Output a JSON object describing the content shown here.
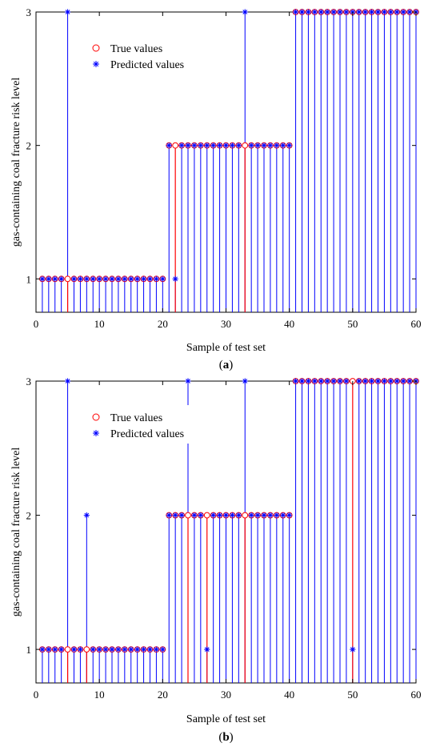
{
  "colors": {
    "true": "#ff0000",
    "pred": "#0000ff",
    "axis": "#000000"
  },
  "chart_data": [
    {
      "type": "scatter",
      "caption": "(a)",
      "xlabel": "Sample of test set",
      "ylabel": "gas-containing coal fracture risk level",
      "xlim": [
        0,
        60
      ],
      "ylim": [
        0.75,
        3.0
      ],
      "xticks": [
        "0",
        "10",
        "20",
        "30",
        "40",
        "50",
        "60"
      ],
      "yticks": [
        "1",
        "2",
        "3"
      ],
      "legend": {
        "position": "top-left",
        "entries": [
          "True values",
          "Predicted values"
        ]
      },
      "x": [
        1,
        2,
        3,
        4,
        5,
        6,
        7,
        8,
        9,
        10,
        11,
        12,
        13,
        14,
        15,
        16,
        17,
        18,
        19,
        20,
        21,
        22,
        23,
        24,
        25,
        26,
        27,
        28,
        29,
        30,
        31,
        32,
        33,
        34,
        35,
        36,
        37,
        38,
        39,
        40,
        41,
        42,
        43,
        44,
        45,
        46,
        47,
        48,
        49,
        50,
        51,
        52,
        53,
        54,
        55,
        56,
        57,
        58,
        59,
        60
      ],
      "series": [
        {
          "name": "True values",
          "marker": "circle",
          "values": [
            1,
            1,
            1,
            1,
            1,
            1,
            1,
            1,
            1,
            1,
            1,
            1,
            1,
            1,
            1,
            1,
            1,
            1,
            1,
            1,
            2,
            2,
            2,
            2,
            2,
            2,
            2,
            2,
            2,
            2,
            2,
            2,
            2,
            2,
            2,
            2,
            2,
            2,
            2,
            2,
            3,
            3,
            3,
            3,
            3,
            3,
            3,
            3,
            3,
            3,
            3,
            3,
            3,
            3,
            3,
            3,
            3,
            3,
            3,
            3
          ]
        },
        {
          "name": "Predicted values",
          "marker": "asterisk",
          "values": [
            1,
            1,
            1,
            1,
            3,
            1,
            1,
            1,
            1,
            1,
            1,
            1,
            1,
            1,
            1,
            1,
            1,
            1,
            1,
            1,
            2,
            1,
            2,
            2,
            2,
            2,
            2,
            2,
            2,
            2,
            2,
            2,
            3,
            2,
            2,
            2,
            2,
            2,
            2,
            2,
            3,
            3,
            3,
            3,
            3,
            3,
            3,
            3,
            3,
            3,
            3,
            3,
            3,
            3,
            3,
            3,
            3,
            3,
            3,
            3
          ]
        }
      ]
    },
    {
      "type": "scatter",
      "caption": "(b)",
      "xlabel": "Sample of test set",
      "ylabel": "gas-containing coal fracture risk level",
      "xlim": [
        0,
        60
      ],
      "ylim": [
        0.75,
        3.0
      ],
      "xticks": [
        "0",
        "10",
        "20",
        "30",
        "40",
        "50",
        "60"
      ],
      "yticks": [
        "1",
        "2",
        "3"
      ],
      "legend": {
        "position": "top-left",
        "entries": [
          "True values",
          "Predicted values"
        ]
      },
      "x": [
        1,
        2,
        3,
        4,
        5,
        6,
        7,
        8,
        9,
        10,
        11,
        12,
        13,
        14,
        15,
        16,
        17,
        18,
        19,
        20,
        21,
        22,
        23,
        24,
        25,
        26,
        27,
        28,
        29,
        30,
        31,
        32,
        33,
        34,
        35,
        36,
        37,
        38,
        39,
        40,
        41,
        42,
        43,
        44,
        45,
        46,
        47,
        48,
        49,
        50,
        51,
        52,
        53,
        54,
        55,
        56,
        57,
        58,
        59,
        60
      ],
      "series": [
        {
          "name": "True values",
          "marker": "circle",
          "values": [
            1,
            1,
            1,
            1,
            1,
            1,
            1,
            1,
            1,
            1,
            1,
            1,
            1,
            1,
            1,
            1,
            1,
            1,
            1,
            1,
            2,
            2,
            2,
            2,
            2,
            2,
            2,
            2,
            2,
            2,
            2,
            2,
            2,
            2,
            2,
            2,
            2,
            2,
            2,
            2,
            3,
            3,
            3,
            3,
            3,
            3,
            3,
            3,
            3,
            3,
            3,
            3,
            3,
            3,
            3,
            3,
            3,
            3,
            3,
            3
          ]
        },
        {
          "name": "Predicted values",
          "marker": "asterisk",
          "values": [
            1,
            1,
            1,
            1,
            3,
            1,
            1,
            2,
            1,
            1,
            1,
            1,
            1,
            1,
            1,
            1,
            1,
            1,
            1,
            1,
            2,
            2,
            2,
            3,
            2,
            2,
            1,
            2,
            2,
            2,
            2,
            2,
            3,
            2,
            2,
            2,
            2,
            2,
            2,
            2,
            3,
            3,
            3,
            3,
            3,
            3,
            3,
            3,
            3,
            1,
            3,
            3,
            3,
            3,
            3,
            3,
            3,
            3,
            3,
            3
          ]
        }
      ]
    }
  ]
}
